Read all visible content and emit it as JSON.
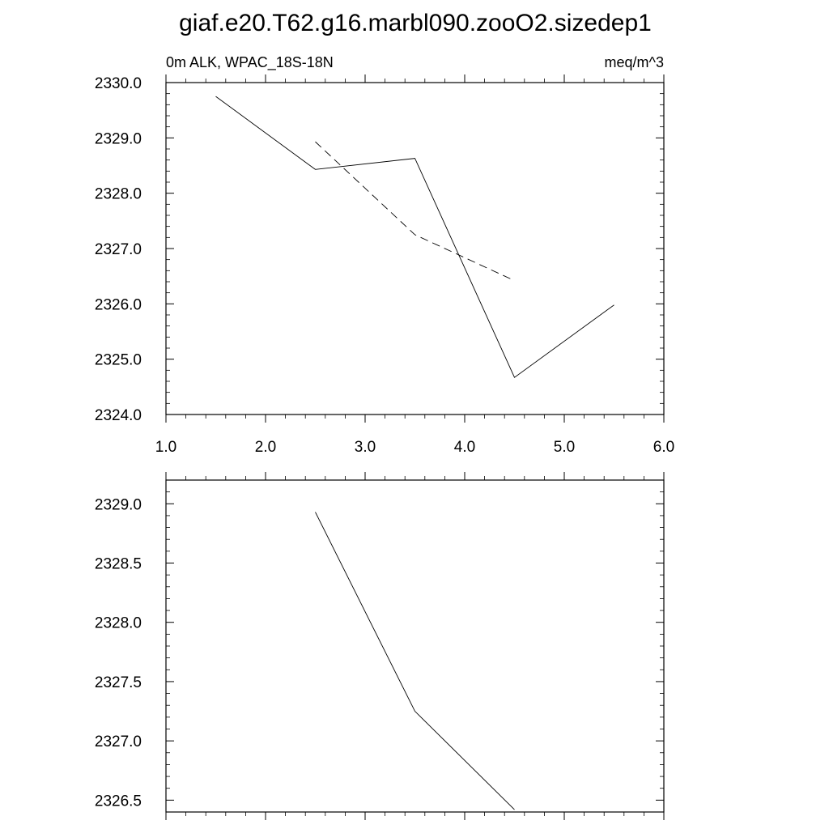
{
  "title": "giaf.e20.T62.g16.marbl090.zooO2.sizedep1",
  "chart_data": [
    {
      "type": "line",
      "left_label": "0m ALK, WPAC_18S-18N",
      "right_label": "meq/m^3",
      "xlim": [
        1.0,
        6.0
      ],
      "ylim": [
        2324.0,
        2330.0
      ],
      "xticks": [
        1.0,
        2.0,
        3.0,
        4.0,
        5.0,
        6.0
      ],
      "xtick_labels": [
        "1.0",
        "2.0",
        "3.0",
        "4.0",
        "5.0",
        "6.0"
      ],
      "yticks": [
        2324.0,
        2325.0,
        2326.0,
        2327.0,
        2328.0,
        2329.0,
        2330.0
      ],
      "ytick_labels": [
        "2324.0",
        "2325.0",
        "2326.0",
        "2327.0",
        "2328.0",
        "2329.0",
        "2330.0"
      ],
      "grid": false,
      "series": [
        {
          "style": "solid",
          "x": [
            1.5,
            2.5,
            3.5,
            4.5,
            5.5
          ],
          "y": [
            2329.75,
            2328.43,
            2328.63,
            2324.67,
            2325.98
          ]
        },
        {
          "style": "dashed",
          "x": [
            2.5,
            3.5,
            4.5
          ],
          "y": [
            2328.93,
            2327.25,
            2326.42
          ]
        }
      ]
    },
    {
      "type": "line",
      "xlim": [
        1.0,
        6.0
      ],
      "ylim": [
        2326.4,
        2329.2
      ],
      "xticks": [
        1.0,
        2.0,
        3.0,
        4.0,
        5.0,
        6.0
      ],
      "yticks": [
        2326.5,
        2327.0,
        2327.5,
        2328.0,
        2328.5,
        2329.0
      ],
      "ytick_labels": [
        "2326.5",
        "2327.0",
        "2327.5",
        "2328.0",
        "2328.5",
        "2329.0"
      ],
      "grid": false,
      "series": [
        {
          "style": "solid",
          "x": [
            2.5,
            3.5,
            4.5
          ],
          "y": [
            2328.93,
            2327.25,
            2326.42
          ]
        }
      ]
    }
  ]
}
